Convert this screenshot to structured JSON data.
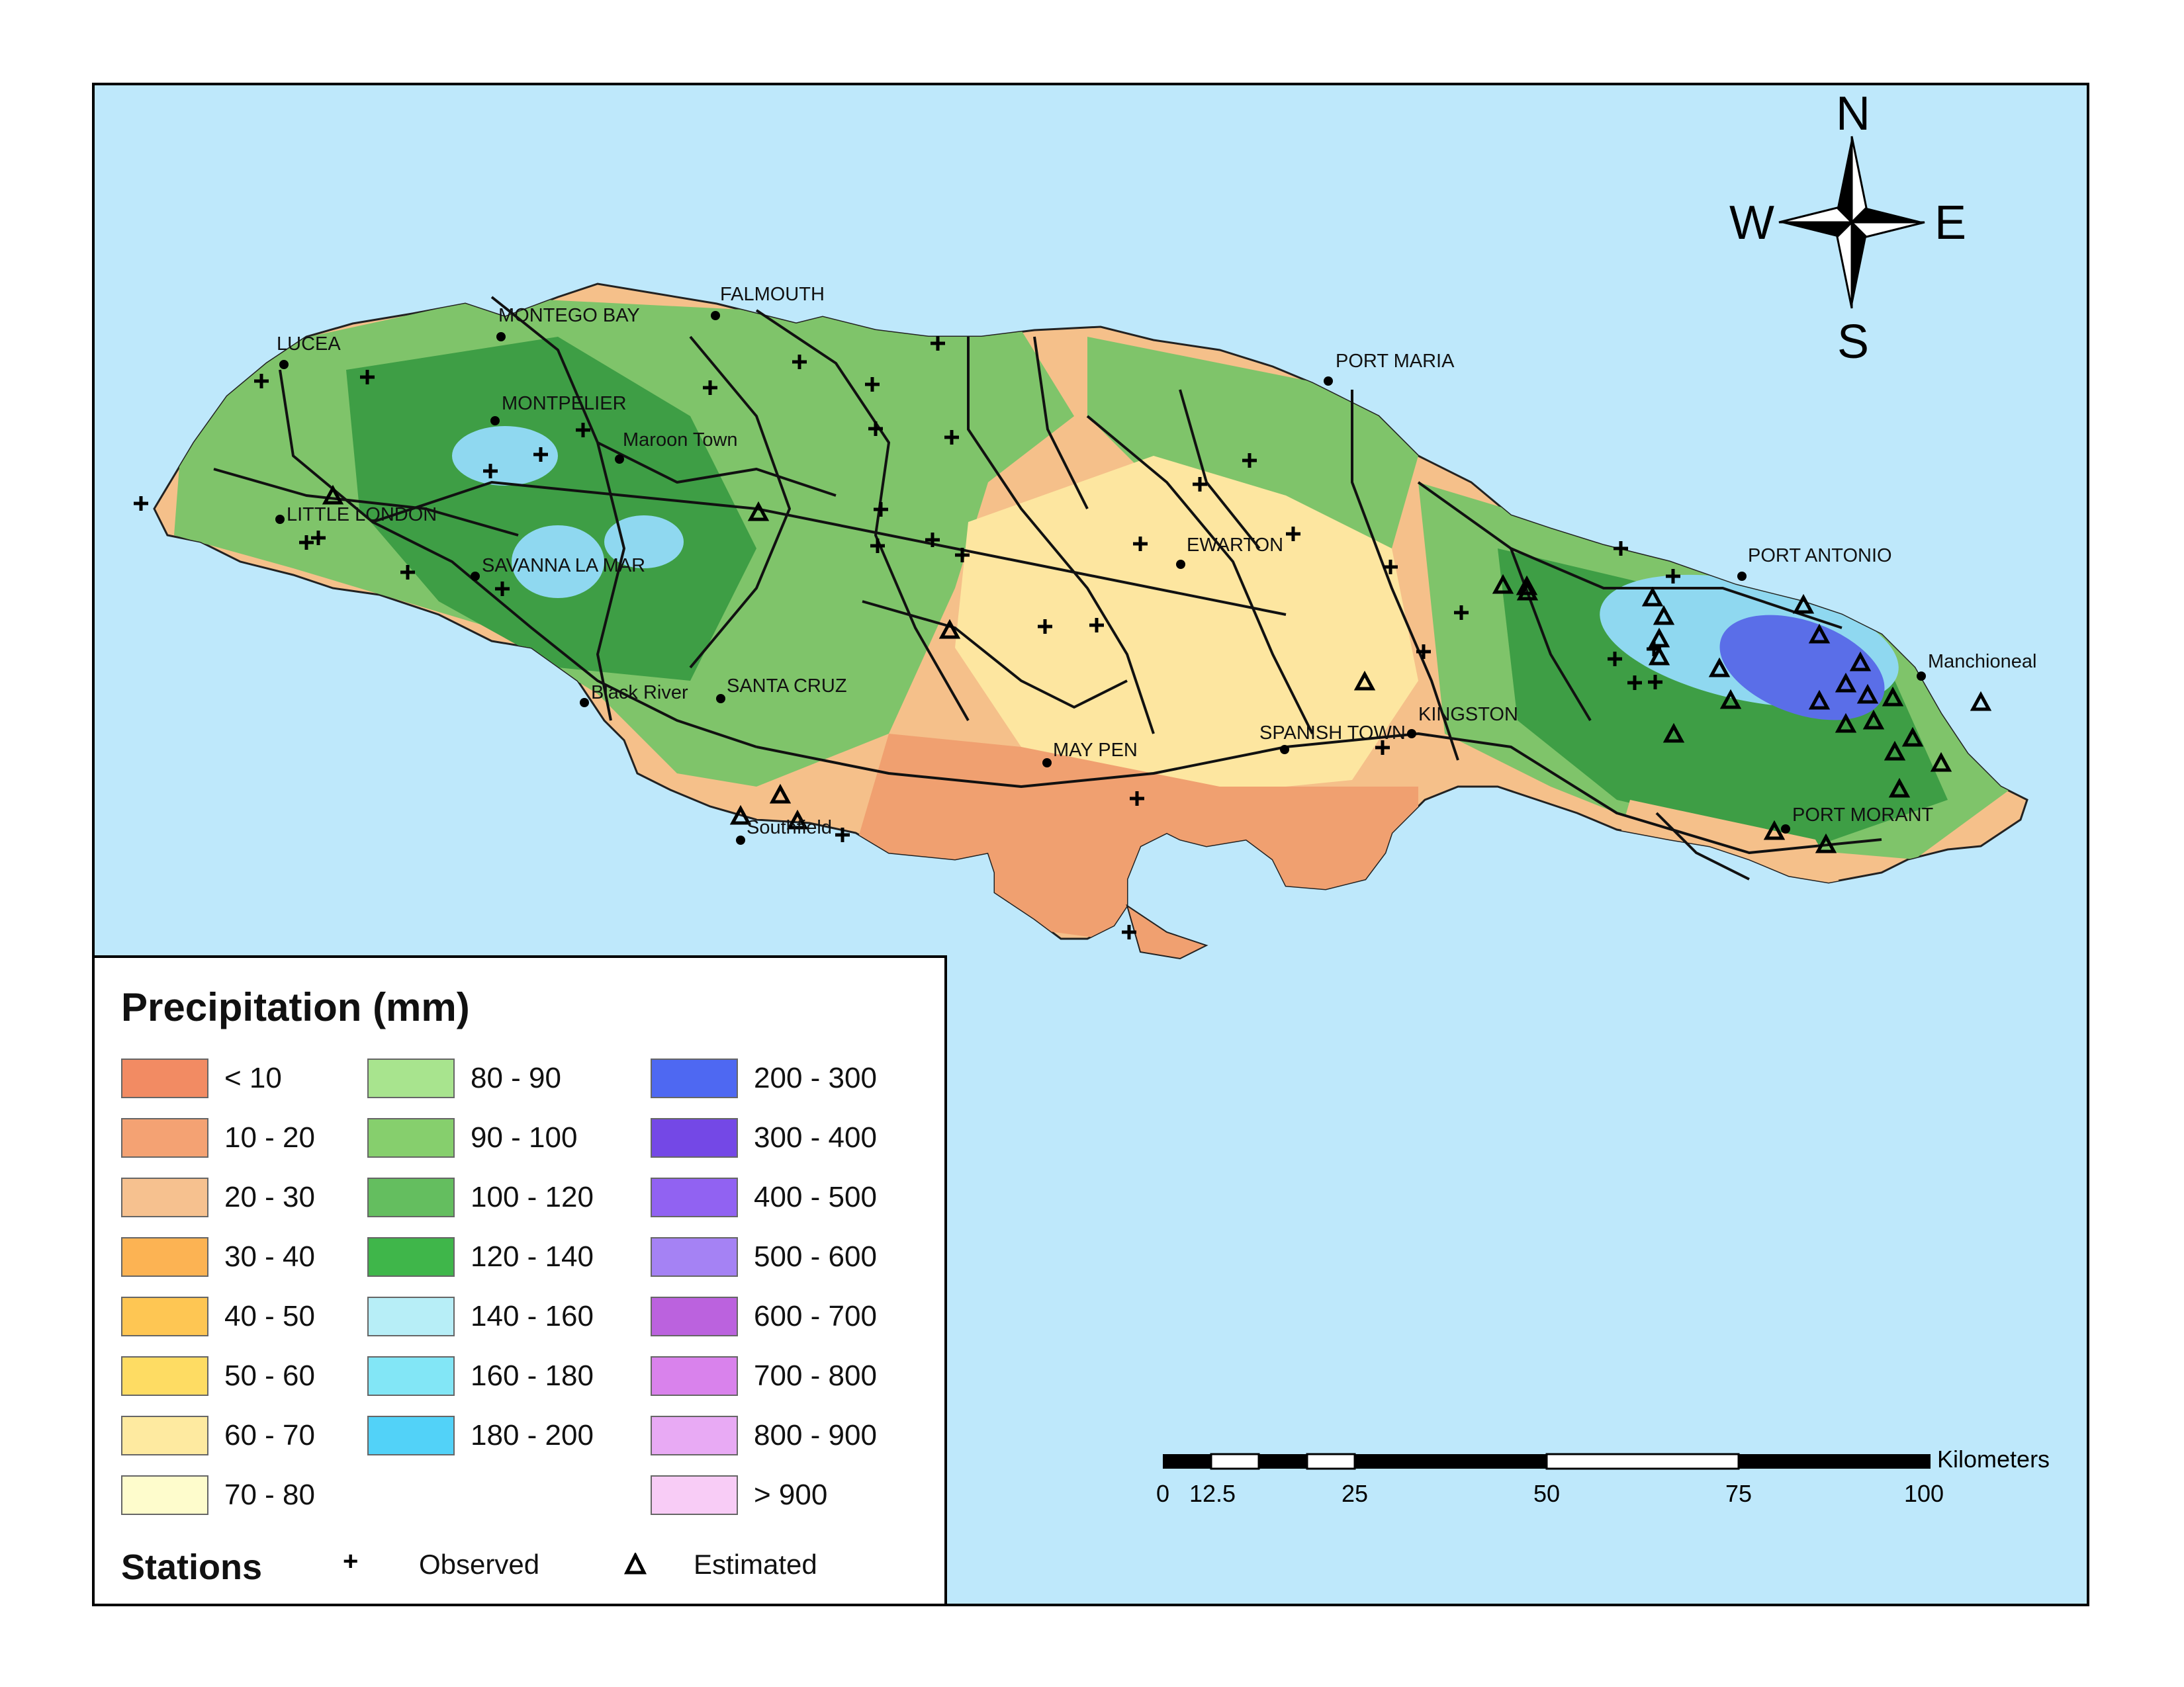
{
  "map": {
    "colors": {
      "ocean": "#bee8fb",
      "coast_dry": "#f0a070",
      "lowland": "#f5c08a",
      "midland": "#fde6a0",
      "hill_green": "#7fc46a",
      "mountain_green": "#3e9e45",
      "wet_blue": "#8fd8f0",
      "very_wet": "#5a6ee8",
      "road": "#111111"
    },
    "places": [
      {
        "id": "lucea",
        "name": "LUCEA"
      },
      {
        "id": "montego-bay",
        "name": "MONTEGO BAY"
      },
      {
        "id": "falmouth",
        "name": "FALMOUTH"
      },
      {
        "id": "montpelier",
        "name": "MONTPELIER"
      },
      {
        "id": "maroon-town",
        "name": "Maroon Town"
      },
      {
        "id": "little-london",
        "name": "LITTLE LONDON"
      },
      {
        "id": "savanna-la-mar",
        "name": "SAVANNA LA MAR"
      },
      {
        "id": "black-river",
        "name": "Black River"
      },
      {
        "id": "santa-cruz",
        "name": "SANTA CRUZ"
      },
      {
        "id": "southfield",
        "name": "Southfield"
      },
      {
        "id": "may-pen",
        "name": "MAY PEN"
      },
      {
        "id": "spanish-town",
        "name": "SPANISH TOWN"
      },
      {
        "id": "kingston",
        "name": "KINGSTON"
      },
      {
        "id": "ewarton",
        "name": "EWARTON"
      },
      {
        "id": "port-maria",
        "name": "PORT MARIA"
      },
      {
        "id": "port-antonio",
        "name": "PORT ANTONIO"
      },
      {
        "id": "manchioneal",
        "name": "Manchioneal"
      },
      {
        "id": "port-morant",
        "name": "PORT MORANT"
      }
    ]
  },
  "compass": {
    "n": "N",
    "s": "S",
    "e": "E",
    "w": "W"
  },
  "scalebar": {
    "unit": "Kilometers",
    "ticks": [
      "0",
      "12.5",
      "25",
      "50",
      "75",
      "100"
    ]
  },
  "legend": {
    "title": "Precipitation (mm)",
    "classes": [
      {
        "label": "< 10",
        "color": "#f28b63"
      },
      {
        "label": "10 - 20",
        "color": "#f4a273"
      },
      {
        "label": "20 - 30",
        "color": "#f6c18f"
      },
      {
        "label": "30 - 40",
        "color": "#fcb353"
      },
      {
        "label": "40 - 50",
        "color": "#fec653"
      },
      {
        "label": "50 - 60",
        "color": "#fedc63"
      },
      {
        "label": "60 - 70",
        "color": "#feeaa0"
      },
      {
        "label": "70 - 80",
        "color": "#fefccc"
      },
      {
        "label": "80 - 90",
        "color": "#a8e48e"
      },
      {
        "label": "90 - 100",
        "color": "#86cf6d"
      },
      {
        "label": "100 - 120",
        "color": "#64be5f"
      },
      {
        "label": "120 - 140",
        "color": "#3fb64a"
      },
      {
        "label": "140 - 160",
        "color": "#b7eef7"
      },
      {
        "label": "160 - 180",
        "color": "#82e6f6"
      },
      {
        "label": "180 - 200",
        "color": "#52d2f8"
      },
      {
        "label": "200 - 300",
        "color": "#4e68f2"
      },
      {
        "label": "300 - 400",
        "color": "#7448e6"
      },
      {
        "label": "400 - 500",
        "color": "#9162f2"
      },
      {
        "label": "500 - 600",
        "color": "#a582f4"
      },
      {
        "label": "600 - 700",
        "color": "#bb62de"
      },
      {
        "label": "700 - 800",
        "color": "#d982ec"
      },
      {
        "label": "800 - 900",
        "color": "#e8aaf4"
      },
      {
        "label": "> 900",
        "color": "#f8ccf6"
      }
    ],
    "stations_title": "Stations",
    "observed_label": "Observed",
    "estimated_label": "Estimated",
    "observed_symbol": "+",
    "estimated_symbol": "triangle"
  }
}
